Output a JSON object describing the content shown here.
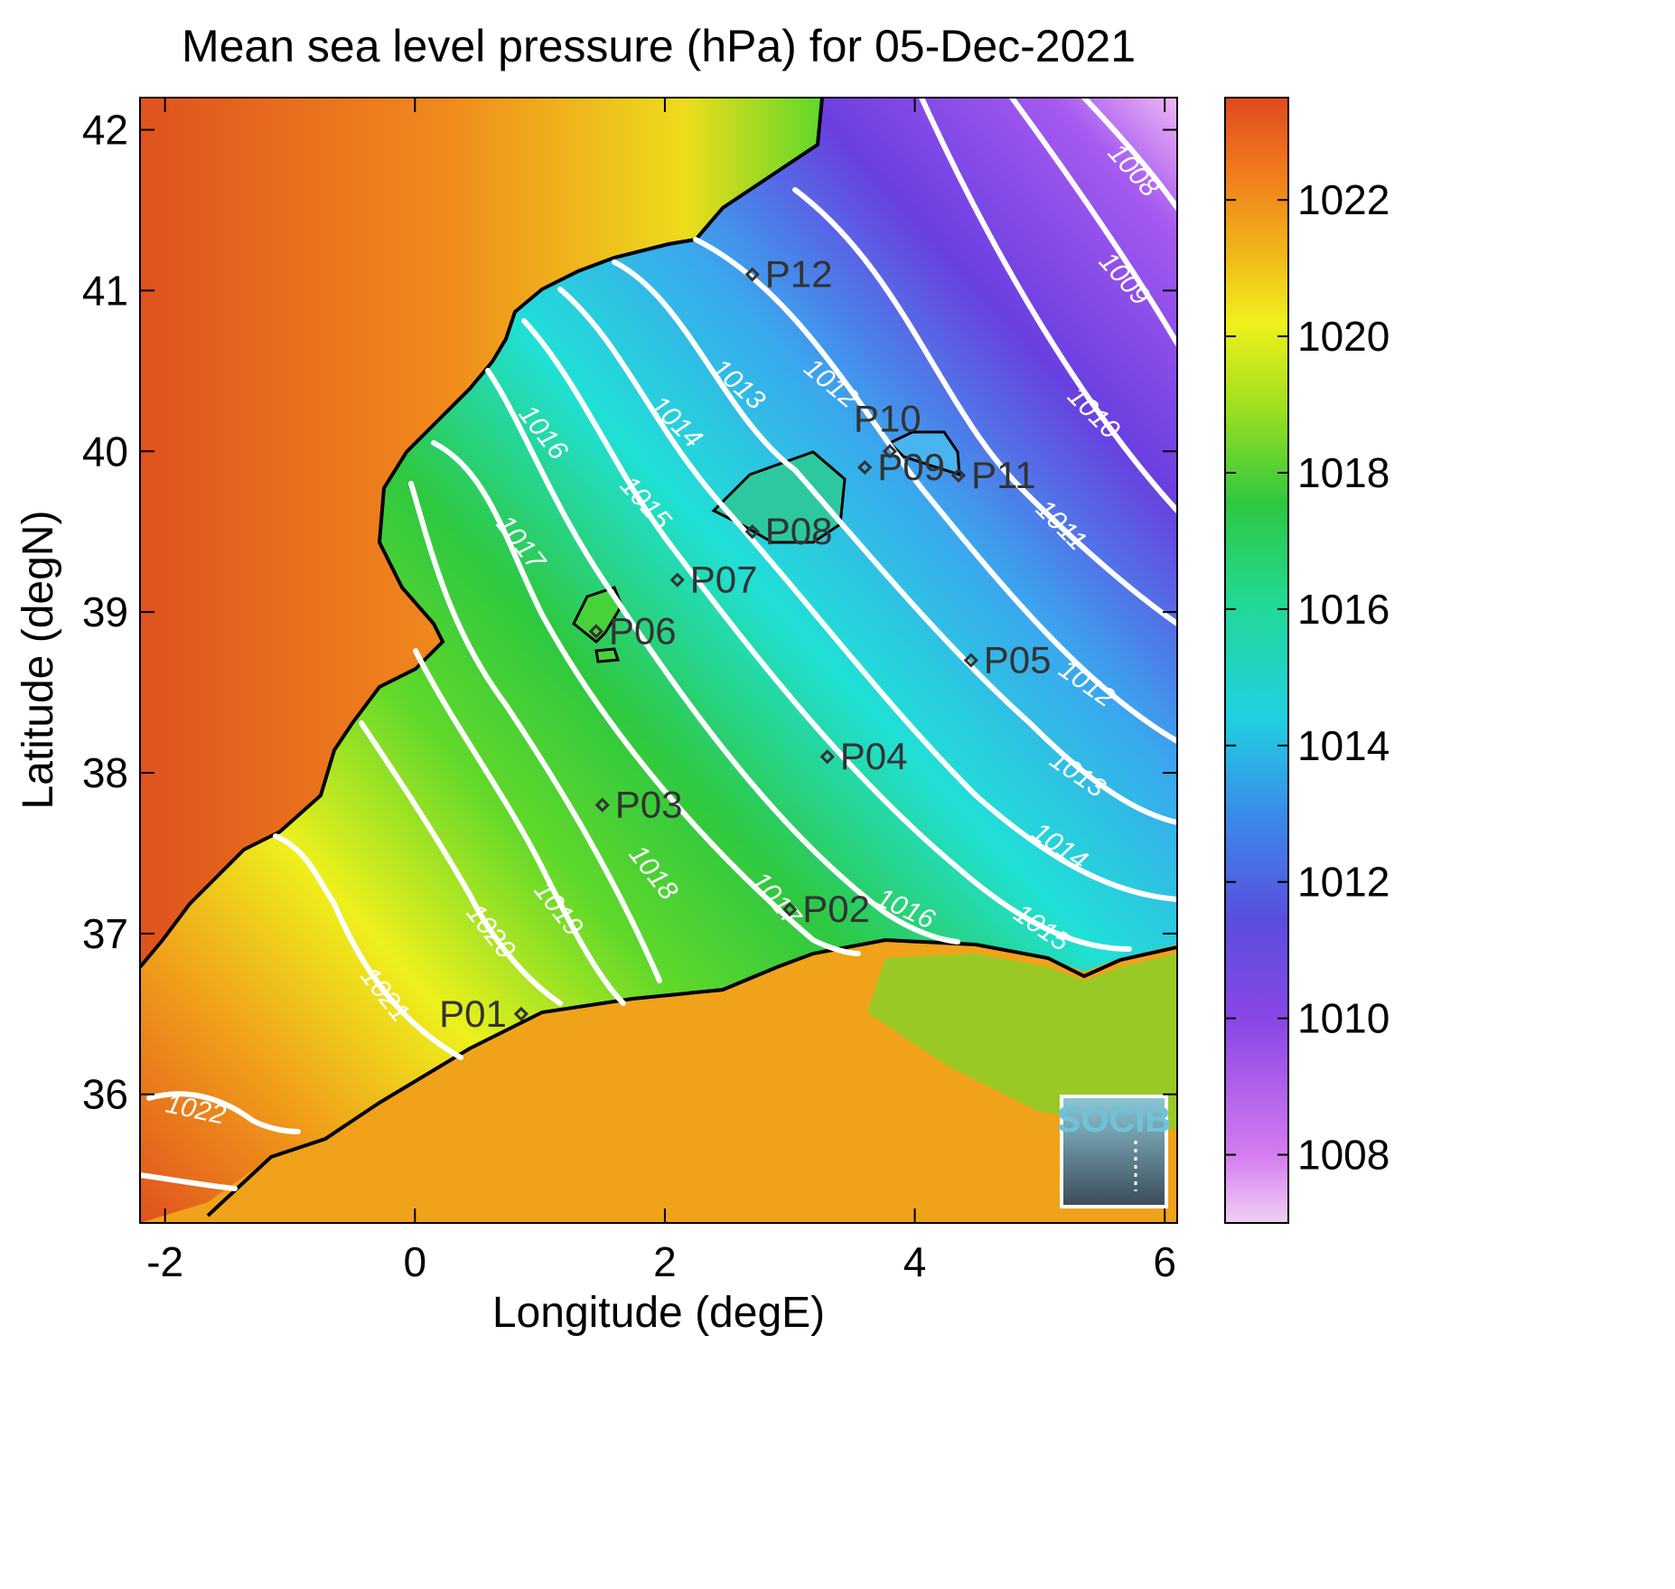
{
  "title": "Mean sea level pressure (hPa) for 05-Dec-2021",
  "xaxis": {
    "label": "Longitude (degE)",
    "ticks": [
      "-2",
      "0",
      "2",
      "4",
      "6"
    ],
    "range": [
      -2.2,
      6.1
    ]
  },
  "yaxis": {
    "label": "Latitude (degN)",
    "ticks": [
      "36",
      "37",
      "38",
      "39",
      "40",
      "41",
      "42"
    ],
    "range": [
      35.2,
      42.2
    ]
  },
  "colorbar": {
    "ticks": [
      "1008",
      "1010",
      "1012",
      "1014",
      "1016",
      "1018",
      "1020",
      "1022"
    ],
    "range": [
      1007,
      1023.5
    ]
  },
  "contour_labels": [
    "1008",
    "1009",
    "1010",
    "1011",
    "1012",
    "1012",
    "1013",
    "1013",
    "1014",
    "1014",
    "1015",
    "1015",
    "1016",
    "1016",
    "1017",
    "1017",
    "1018",
    "1019",
    "1020",
    "1021",
    "1022"
  ],
  "stations": [
    {
      "name": "P01",
      "lon": 0.85,
      "lat": 36.5
    },
    {
      "name": "P02",
      "lon": 3.0,
      "lat": 37.15
    },
    {
      "name": "P03",
      "lon": 1.5,
      "lat": 37.8
    },
    {
      "name": "P04",
      "lon": 3.3,
      "lat": 38.1
    },
    {
      "name": "P05",
      "lon": 4.45,
      "lat": 38.7
    },
    {
      "name": "P06",
      "lon": 1.45,
      "lat": 38.88
    },
    {
      "name": "P07",
      "lon": 2.1,
      "lat": 39.2
    },
    {
      "name": "P08",
      "lon": 2.7,
      "lat": 39.5
    },
    {
      "name": "P09",
      "lon": 3.6,
      "lat": 39.9
    },
    {
      "name": "P10",
      "lon": 3.8,
      "lat": 40.0
    },
    {
      "name": "P11",
      "lon": 4.35,
      "lat": 39.85
    },
    {
      "name": "P12",
      "lon": 2.7,
      "lat": 41.1
    }
  ],
  "logo": {
    "text": "SOCIB"
  },
  "colors": {
    "land_high": "#e0521e",
    "sea_green": "#2ec840",
    "sea_cyan": "#20e0d6",
    "sea_purple": "#6a3fe0",
    "contour": "#ffffff",
    "coast": "#000000"
  }
}
